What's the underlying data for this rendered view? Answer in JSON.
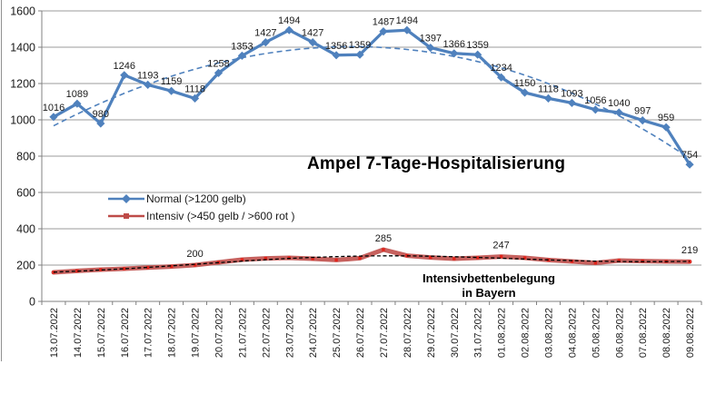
{
  "title": "Ampel 7-Tage-Hospitalisierung",
  "annotation": {
    "line1": "Intensivbettenbelegung",
    "line2": "in Bayern"
  },
  "legend": {
    "items": [
      {
        "label": "Normal (>1200 gelb)",
        "marker": "diamond",
        "color": "#4F81BD"
      },
      {
        "label": "Intensiv (>450 gelb / >600 rot )",
        "marker": "square",
        "color": "#BE4B48"
      }
    ],
    "position": "inside-upper-left"
  },
  "colors": {
    "normal_line": "#4F81BD",
    "normal_trend": "#4F81BD",
    "intensiv_line": "#BE4B48",
    "intensiv_marker": "#E2231A",
    "intensiv_trend": "#000000",
    "gridline": "#9B9B9B",
    "axis": "#808080",
    "text": "#1A1A1A"
  },
  "chart_data": {
    "type": "line",
    "title": "Ampel 7-Tage-Hospitalisierung",
    "xlabel": "",
    "ylabel": "",
    "ylim": [
      0,
      1600
    ],
    "ytick_step": 200,
    "yticks": [
      "0",
      "200",
      "400",
      "600",
      "800",
      "1000",
      "1200",
      "1400",
      "1600"
    ],
    "grid": true,
    "categories": [
      "13.07.2022",
      "14.07.2022",
      "15.07.2022",
      "16.07.2022",
      "17.07.2022",
      "18.07.2022",
      "19.07.2022",
      "20.07.2022",
      "21.07.2022",
      "22.07.2022",
      "23.07.2022",
      "24.07.2022",
      "25.07.2022",
      "26.07.2022",
      "27.07.2022",
      "28.07.2022",
      "29.07.2022",
      "30.07.2022",
      "31.07.2022",
      "01.08.2022",
      "02.08.2022",
      "03.08.2022",
      "04.08.2022",
      "05.08.2022",
      "06.08.2022",
      "07.08.2022",
      "08.08.2022",
      "09.08.2022"
    ],
    "series": [
      {
        "name": "Normal (>1200 gelb)",
        "marker": "diamond",
        "values": [
          1016,
          1089,
          980,
          1246,
          1193,
          1159,
          1118,
          1258,
          1353,
          1427,
          1494,
          1427,
          1356,
          1359,
          1487,
          1494,
          1397,
          1366,
          1359,
          1234,
          1150,
          1118,
          1093,
          1056,
          1040,
          997,
          959,
          754
        ],
        "data_labels": [
          "1016",
          "1089",
          "980",
          "1246",
          "1193",
          "1159",
          "1118",
          "1258",
          "1353",
          "1427",
          "1494",
          "1427",
          "1356",
          "1359",
          "1487",
          "1494",
          "1397",
          "1366",
          "1359",
          "1234",
          "1150",
          "1118",
          "1093",
          "1056",
          "1040",
          "997",
          "959",
          "754"
        ],
        "trendline": {
          "type": "polynomial",
          "order": 3,
          "style": "dashed"
        }
      },
      {
        "name": "Intensiv (>450 gelb / >600 rot )",
        "marker": "square",
        "values": [
          160,
          168,
          175,
          180,
          186,
          192,
          200,
          215,
          230,
          237,
          240,
          235,
          228,
          238,
          285,
          252,
          242,
          235,
          240,
          247,
          240,
          228,
          220,
          212,
          225,
          222,
          220,
          219
        ],
        "data_labels": [
          "",
          "",
          "",
          "",
          "",
          "",
          "200",
          "",
          "",
          "",
          "",
          "",
          "",
          "",
          "285",
          "",
          "",
          "",
          "",
          "247",
          "",
          "",
          "",
          "",
          "",
          "",
          "",
          "219"
        ],
        "trendline": {
          "type": "polynomial",
          "order": 6,
          "style": "dashed"
        }
      }
    ]
  }
}
